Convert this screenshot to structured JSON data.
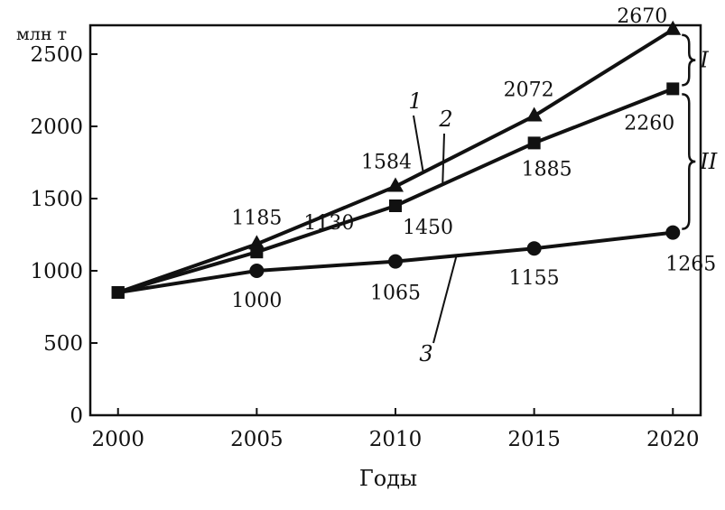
{
  "chart_data": {
    "type": "line",
    "ylabel": "млн т",
    "xlabel": "Годы",
    "x": [
      2000,
      2005,
      2010,
      2015,
      2020
    ],
    "xlim": [
      1999,
      2021
    ],
    "ylim": [
      0,
      2700
    ],
    "yticks": [
      0,
      500,
      1000,
      1500,
      2000,
      2500
    ],
    "grid": false,
    "series": [
      {
        "name": "1",
        "marker": "triangle",
        "values": [
          850,
          1185,
          1584,
          2072,
          2670
        ],
        "labels": [
          "",
          "1185",
          "1584",
          "2072",
          "2670"
        ]
      },
      {
        "name": "2",
        "marker": "square",
        "values": [
          850,
          1130,
          1450,
          1885,
          2260
        ],
        "labels": [
          "",
          "1130",
          "1450",
          "1885",
          "2260"
        ]
      },
      {
        "name": "3",
        "marker": "circle",
        "values": [
          850,
          1000,
          1065,
          1155,
          1265
        ],
        "labels": [
          "",
          "1000",
          "1065",
          "1155",
          "1265"
        ]
      }
    ],
    "braces": [
      {
        "label": "I",
        "from_series": 0,
        "to_series": 1
      },
      {
        "label": "II",
        "from_series": 1,
        "to_series": 2
      }
    ]
  }
}
